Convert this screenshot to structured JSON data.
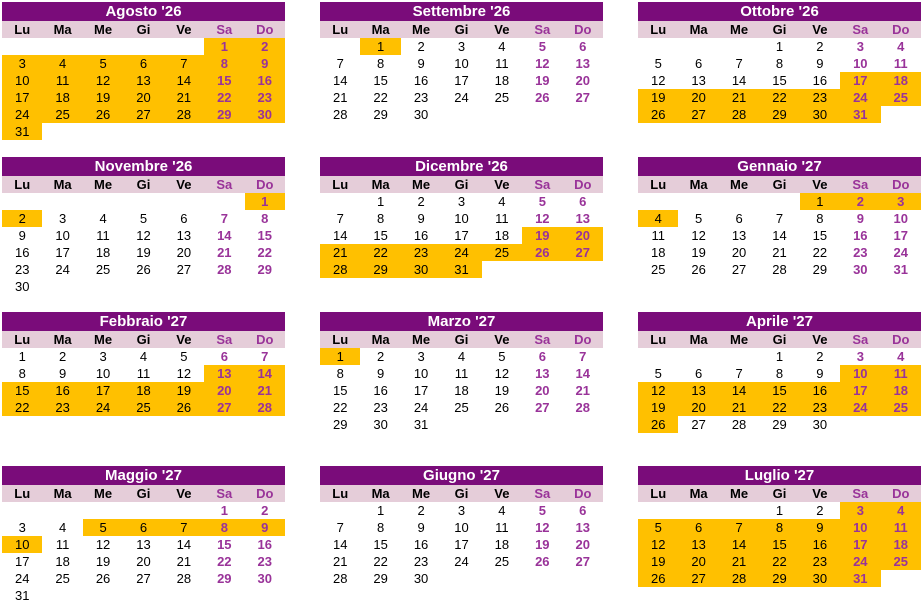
{
  "weekday_headers": [
    "Lu",
    "Ma",
    "Me",
    "Gi",
    "Ve",
    "Sa",
    "Do"
  ],
  "colors": {
    "month_header_bg": "#7a0c7a",
    "month_header_text": "#ffffff",
    "weekday_header_bg": "#e5cdd9",
    "weekday_text": "#000000",
    "weekend_text": "#993399",
    "highlight_bg": "#ffc000",
    "page_bg": "#ffffff"
  },
  "months": [
    {
      "name": "Agosto '26",
      "weeks": [
        [
          "",
          "",
          "",
          "",
          "",
          1,
          2
        ],
        [
          3,
          4,
          5,
          6,
          7,
          8,
          9
        ],
        [
          10,
          11,
          12,
          13,
          14,
          15,
          16
        ],
        [
          17,
          18,
          19,
          20,
          21,
          22,
          23
        ],
        [
          24,
          25,
          26,
          27,
          28,
          29,
          30
        ],
        [
          31,
          "",
          "",
          "",
          "",
          "",
          ""
        ]
      ],
      "highlighted_days": [
        1,
        2,
        3,
        4,
        5,
        6,
        7,
        8,
        9,
        10,
        11,
        12,
        13,
        14,
        15,
        16,
        17,
        18,
        19,
        20,
        21,
        22,
        23,
        24,
        25,
        26,
        27,
        28,
        29,
        30,
        31
      ]
    },
    {
      "name": "Settembre '26",
      "weeks": [
        [
          "",
          1,
          2,
          3,
          4,
          5,
          6
        ],
        [
          7,
          8,
          9,
          10,
          11,
          12,
          13
        ],
        [
          14,
          15,
          16,
          17,
          18,
          19,
          20
        ],
        [
          21,
          22,
          23,
          24,
          25,
          26,
          27
        ],
        [
          28,
          29,
          30,
          "",
          "",
          "",
          ""
        ]
      ],
      "highlighted_days": [
        1
      ]
    },
    {
      "name": "Ottobre '26",
      "weeks": [
        [
          "",
          "",
          "",
          1,
          2,
          3,
          4
        ],
        [
          5,
          6,
          7,
          8,
          9,
          10,
          11
        ],
        [
          12,
          13,
          14,
          15,
          16,
          17,
          18
        ],
        [
          19,
          20,
          21,
          22,
          23,
          24,
          25
        ],
        [
          26,
          27,
          28,
          29,
          30,
          31,
          ""
        ]
      ],
      "highlighted_days": [
        17,
        18,
        19,
        20,
        21,
        22,
        23,
        24,
        25,
        26,
        27,
        28,
        29,
        30,
        31
      ]
    },
    {
      "name": "Novembre '26",
      "weeks": [
        [
          "",
          "",
          "",
          "",
          "",
          "",
          1
        ],
        [
          2,
          3,
          4,
          5,
          6,
          7,
          8
        ],
        [
          9,
          10,
          11,
          12,
          13,
          14,
          15
        ],
        [
          16,
          17,
          18,
          19,
          20,
          21,
          22
        ],
        [
          23,
          24,
          25,
          26,
          27,
          28,
          29
        ],
        [
          30,
          "",
          "",
          "",
          "",
          "",
          ""
        ]
      ],
      "highlighted_days": [
        1,
        2
      ]
    },
    {
      "name": "Dicembre '26",
      "weeks": [
        [
          "",
          1,
          2,
          3,
          4,
          5,
          6
        ],
        [
          7,
          8,
          9,
          10,
          11,
          12,
          13
        ],
        [
          14,
          15,
          16,
          17,
          18,
          19,
          20
        ],
        [
          21,
          22,
          23,
          24,
          25,
          26,
          27
        ],
        [
          28,
          29,
          30,
          31,
          "",
          "",
          ""
        ]
      ],
      "highlighted_days": [
        19,
        20,
        21,
        22,
        23,
        24,
        25,
        26,
        27,
        28,
        29,
        30,
        31
      ]
    },
    {
      "name": "Gennaio '27",
      "weeks": [
        [
          "",
          "",
          "",
          "",
          1,
          2,
          3
        ],
        [
          4,
          5,
          6,
          7,
          8,
          9,
          10
        ],
        [
          11,
          12,
          13,
          14,
          15,
          16,
          17
        ],
        [
          18,
          19,
          20,
          21,
          22,
          23,
          24
        ],
        [
          25,
          26,
          27,
          28,
          29,
          30,
          31
        ]
      ],
      "highlighted_days": [
        1,
        2,
        3,
        4
      ]
    },
    {
      "name": "Febbraio '27",
      "weeks": [
        [
          1,
          2,
          3,
          4,
          5,
          6,
          7
        ],
        [
          8,
          9,
          10,
          11,
          12,
          13,
          14
        ],
        [
          15,
          16,
          17,
          18,
          19,
          20,
          21
        ],
        [
          22,
          23,
          24,
          25,
          26,
          27,
          28
        ]
      ],
      "highlighted_days": [
        13,
        14,
        15,
        16,
        17,
        18,
        19,
        20,
        21,
        22,
        23,
        24,
        25,
        26,
        27,
        28
      ]
    },
    {
      "name": "Marzo '27",
      "weeks": [
        [
          1,
          2,
          3,
          4,
          5,
          6,
          7
        ],
        [
          8,
          9,
          10,
          11,
          12,
          13,
          14
        ],
        [
          15,
          16,
          17,
          18,
          19,
          20,
          21
        ],
        [
          22,
          23,
          24,
          25,
          26,
          27,
          28
        ],
        [
          29,
          30,
          31,
          "",
          "",
          "",
          ""
        ]
      ],
      "highlighted_days": [
        1
      ]
    },
    {
      "name": "Aprile '27",
      "weeks": [
        [
          "",
          "",
          "",
          1,
          2,
          3,
          4
        ],
        [
          5,
          6,
          7,
          8,
          9,
          10,
          11
        ],
        [
          12,
          13,
          14,
          15,
          16,
          17,
          18
        ],
        [
          19,
          20,
          21,
          22,
          23,
          24,
          25
        ],
        [
          26,
          27,
          28,
          29,
          30,
          "",
          ""
        ]
      ],
      "highlighted_days": [
        10,
        11,
        12,
        13,
        14,
        15,
        16,
        17,
        18,
        19,
        20,
        21,
        22,
        23,
        24,
        25,
        26
      ]
    },
    {
      "name": "Maggio '27",
      "weeks": [
        [
          "",
          "",
          "",
          "",
          "",
          1,
          2
        ],
        [
          3,
          4,
          5,
          6,
          7,
          8,
          9
        ],
        [
          10,
          11,
          12,
          13,
          14,
          15,
          16
        ],
        [
          17,
          18,
          19,
          20,
          21,
          22,
          23
        ],
        [
          24,
          25,
          26,
          27,
          28,
          29,
          30
        ],
        [
          31,
          "",
          "",
          "",
          "",
          "",
          ""
        ]
      ],
      "highlighted_days": [
        5,
        6,
        7,
        8,
        9,
        10
      ]
    },
    {
      "name": "Giugno '27",
      "weeks": [
        [
          "",
          1,
          2,
          3,
          4,
          5,
          6
        ],
        [
          7,
          8,
          9,
          10,
          11,
          12,
          13
        ],
        [
          14,
          15,
          16,
          17,
          18,
          19,
          20
        ],
        [
          21,
          22,
          23,
          24,
          25,
          26,
          27
        ],
        [
          28,
          29,
          30,
          "",
          "",
          "",
          ""
        ]
      ],
      "highlighted_days": []
    },
    {
      "name": "Luglio '27",
      "weeks": [
        [
          "",
          "",
          "",
          1,
          2,
          3,
          4
        ],
        [
          5,
          6,
          7,
          8,
          9,
          10,
          11
        ],
        [
          12,
          13,
          14,
          15,
          16,
          17,
          18
        ],
        [
          19,
          20,
          21,
          22,
          23,
          24,
          25
        ],
        [
          26,
          27,
          28,
          29,
          30,
          31,
          ""
        ]
      ],
      "highlighted_days": [
        3,
        4,
        5,
        6,
        7,
        8,
        9,
        10,
        11,
        12,
        13,
        14,
        15,
        16,
        17,
        18,
        19,
        20,
        21,
        22,
        23,
        24,
        25,
        26,
        27,
        28,
        29,
        30,
        31
      ]
    }
  ]
}
